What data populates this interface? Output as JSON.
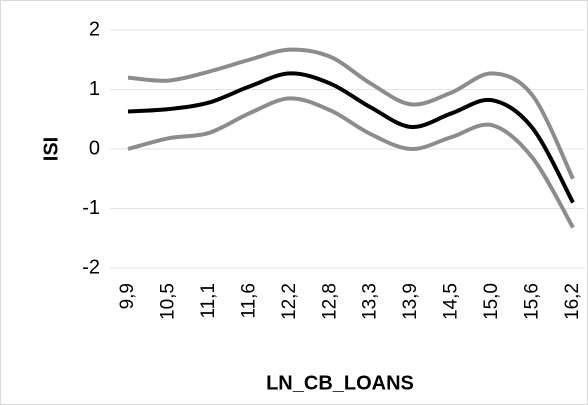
{
  "chart_data": {
    "type": "line",
    "x_label": "LN_CB_LOANS",
    "y_label": "ISI",
    "categories": [
      "9,9",
      "10,5",
      "11,1",
      "11,6",
      "12,2",
      "12,8",
      "13,3",
      "13,9",
      "14,5",
      "15,0",
      "15,6",
      "16,2"
    ],
    "series": [
      {
        "color": "#000000",
        "values": [
          0.63,
          0.67,
          0.78,
          1.05,
          1.27,
          1.1,
          0.7,
          0.37,
          0.6,
          0.82,
          0.35,
          -0.9
        ]
      },
      {
        "color": "#8c8c8c",
        "values": [
          1.2,
          1.15,
          1.3,
          1.5,
          1.67,
          1.55,
          1.1,
          0.75,
          0.95,
          1.27,
          0.9,
          -0.5
        ]
      },
      {
        "color": "#8c8c8c",
        "values": [
          0.0,
          0.18,
          0.27,
          0.6,
          0.85,
          0.65,
          0.25,
          0.0,
          0.2,
          0.4,
          -0.15,
          -1.32
        ]
      }
    ],
    "ylim": [
      -2,
      2
    ],
    "yticks": [
      -2,
      -1,
      0,
      1,
      2
    ],
    "grid": true
  }
}
